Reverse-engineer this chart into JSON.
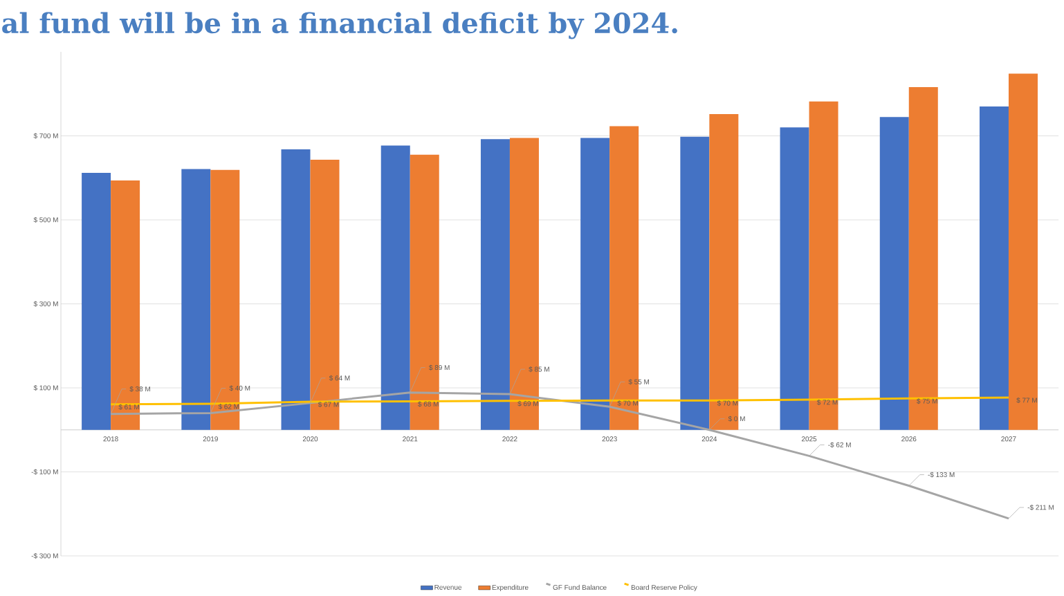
{
  "chart_data": {
    "type": "bar",
    "title": "al fund will be in a financial deficit by 2024.",
    "categories": [
      "2018",
      "2019",
      "2020",
      "2021",
      "2022",
      "2023",
      "2024",
      "2025",
      "2026",
      "2027"
    ],
    "series": [
      {
        "name": "Revenue",
        "color": "#4472c4",
        "values": [
          612,
          621,
          668,
          677,
          692,
          695,
          698,
          720,
          745,
          770
        ]
      },
      {
        "name": "Expenditure",
        "color": "#ed7d31",
        "values": [
          594,
          619,
          643,
          655,
          695,
          723,
          752,
          782,
          816,
          848
        ]
      },
      {
        "name": "GF Fund Balance",
        "type": "line",
        "color": "#a5a5a5",
        "values": [
          38,
          40,
          64,
          89,
          85,
          55,
          0,
          -62,
          -133,
          -211
        ],
        "value_labels": [
          "$ 38 M",
          "$ 40 M",
          "$ 64 M",
          "$ 89 M",
          "$ 85 M",
          "$ 55 M",
          "$ 0 M",
          "-$ 62 M",
          "-$ 133 M",
          "-$ 211 M"
        ]
      },
      {
        "name": "Board Reserve Policy",
        "type": "line",
        "color": "#ffc000",
        "values": [
          61,
          62,
          67,
          68,
          69,
          70,
          70,
          72,
          75,
          77
        ],
        "value_labels": [
          "$ 61 M",
          "$ 62 M",
          "$ 67 M",
          "$ 68 M",
          "$ 69 M",
          "$ 70 M",
          "$ 70 M",
          "$ 72 M",
          "$ 75 M",
          "$ 77 M"
        ]
      }
    ],
    "ylim": [
      -300,
      900
    ],
    "yticks": [
      {
        "value": -300,
        "label": "-$ 300 M"
      },
      {
        "value": -100,
        "label": "-$ 100 M"
      },
      {
        "value": 100,
        "label": "$ 100 M"
      },
      {
        "value": 300,
        "label": "$ 300 M"
      },
      {
        "value": 500,
        "label": "$ 500 M"
      },
      {
        "value": 700,
        "label": "$ 700 M"
      }
    ],
    "grid": "y",
    "legend": "bottom"
  }
}
